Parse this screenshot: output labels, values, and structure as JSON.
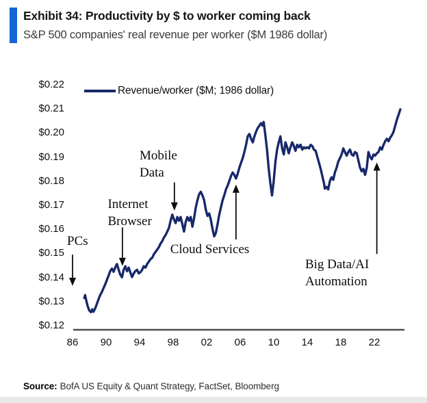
{
  "header": {
    "title": "Exhibit 34: Productivity by $ to worker coming back",
    "subtitle": "S&P 500 companies' real revenue per worker ($M 1986 dollar)"
  },
  "footer": {
    "source_label": "Source:",
    "source_text": "BofA US Equity & Quant Strategy, FactSet, Bloomberg"
  },
  "chart_data": {
    "type": "line",
    "title": "Exhibit 34: Productivity by $ to worker coming back",
    "subtitle": "S&P 500 companies' real revenue per worker ($M 1986 dollar)",
    "legend": "Revenue/worker ($M; 1986 dollar)",
    "legend_position": "top-left",
    "grid": false,
    "colors": {
      "line": "#17296b",
      "accent_bar": "#1565d6",
      "axis": "#4d4d4d",
      "annotation": "#0d0d0d"
    },
    "x_axis": {
      "range": [
        1985.2,
        2025.6
      ],
      "ticks": [
        {
          "label": "86",
          "year": 1986
        },
        {
          "label": "90",
          "year": 1990
        },
        {
          "label": "94",
          "year": 1994
        },
        {
          "label": "98",
          "year": 1998
        },
        {
          "label": "02",
          "year": 2002
        },
        {
          "label": "06",
          "year": 2006
        },
        {
          "label": "10",
          "year": 2010
        },
        {
          "label": "14",
          "year": 2014
        },
        {
          "label": "18",
          "year": 2018
        },
        {
          "label": "22",
          "year": 2022
        }
      ]
    },
    "y_axis": {
      "range": [
        0.118,
        0.225
      ],
      "unit": "$M (1986 dollar)",
      "ticks": [
        {
          "label": "$0.22",
          "value": 0.22
        },
        {
          "label": "$0.21",
          "value": 0.21
        },
        {
          "label": "$0.20",
          "value": 0.2
        },
        {
          "label": "$0.19",
          "value": 0.19
        },
        {
          "label": "$0.18",
          "value": 0.18
        },
        {
          "label": "$0.17",
          "value": 0.17
        },
        {
          "label": "$0.16",
          "value": 0.16
        },
        {
          "label": "$0.15",
          "value": 0.15
        },
        {
          "label": "$0.14",
          "value": 0.14
        },
        {
          "label": "$0.13",
          "value": 0.13
        },
        {
          "label": "$0.12",
          "value": 0.12
        }
      ]
    },
    "series": [
      {
        "name": "Revenue/worker ($M; 1986 dollar)",
        "points": [
          [
            1987.4,
            0.1315
          ],
          [
            1987.5,
            0.1327
          ],
          [
            1987.6,
            0.131
          ],
          [
            1987.8,
            0.1282
          ],
          [
            1988.0,
            0.1263
          ],
          [
            1988.2,
            0.1256
          ],
          [
            1988.35,
            0.1268
          ],
          [
            1988.5,
            0.1258
          ],
          [
            1988.7,
            0.1272
          ],
          [
            1988.9,
            0.129
          ],
          [
            1989.1,
            0.131
          ],
          [
            1989.3,
            0.1327
          ],
          [
            1989.5,
            0.134
          ],
          [
            1989.7,
            0.1356
          ],
          [
            1989.9,
            0.1372
          ],
          [
            1990.1,
            0.139
          ],
          [
            1990.3,
            0.1408
          ],
          [
            1990.5,
            0.1427
          ],
          [
            1990.7,
            0.1437
          ],
          [
            1990.9,
            0.1424
          ],
          [
            1991.1,
            0.1442
          ],
          [
            1991.3,
            0.1456
          ],
          [
            1991.5,
            0.1432
          ],
          [
            1991.7,
            0.1412
          ],
          [
            1991.9,
            0.1401
          ],
          [
            1992.1,
            0.1432
          ],
          [
            1992.3,
            0.1447
          ],
          [
            1992.5,
            0.1426
          ],
          [
            1992.7,
            0.1441
          ],
          [
            1992.9,
            0.1421
          ],
          [
            1993.1,
            0.1402
          ],
          [
            1993.3,
            0.1417
          ],
          [
            1993.5,
            0.1427
          ],
          [
            1993.7,
            0.1432
          ],
          [
            1993.9,
            0.1417
          ],
          [
            1994.1,
            0.1422
          ],
          [
            1994.3,
            0.1432
          ],
          [
            1994.5,
            0.1447
          ],
          [
            1994.7,
            0.1441
          ],
          [
            1994.9,
            0.1456
          ],
          [
            1995.1,
            0.1466
          ],
          [
            1995.3,
            0.1476
          ],
          [
            1995.5,
            0.1482
          ],
          [
            1995.7,
            0.1496
          ],
          [
            1995.9,
            0.1506
          ],
          [
            1996.1,
            0.1516
          ],
          [
            1996.3,
            0.1526
          ],
          [
            1996.5,
            0.1541
          ],
          [
            1996.7,
            0.1551
          ],
          [
            1996.9,
            0.1566
          ],
          [
            1997.1,
            0.1576
          ],
          [
            1997.3,
            0.1591
          ],
          [
            1997.5,
            0.1606
          ],
          [
            1997.7,
            0.1636
          ],
          [
            1997.9,
            0.1661
          ],
          [
            1998.1,
            0.1641
          ],
          [
            1998.3,
            0.1626
          ],
          [
            1998.5,
            0.1651
          ],
          [
            1998.7,
            0.1636
          ],
          [
            1998.9,
            0.1651
          ],
          [
            1999.1,
            0.1621
          ],
          [
            1999.3,
            0.1591
          ],
          [
            1999.5,
            0.1631
          ],
          [
            1999.7,
            0.1651
          ],
          [
            1999.9,
            0.1636
          ],
          [
            2000.1,
            0.1651
          ],
          [
            2000.3,
            0.1611
          ],
          [
            2000.5,
            0.1646
          ],
          [
            2000.7,
            0.1691
          ],
          [
            2000.9,
            0.1721
          ],
          [
            2001.1,
            0.1746
          ],
          [
            2001.3,
            0.1756
          ],
          [
            2001.5,
            0.1741
          ],
          [
            2001.7,
            0.1721
          ],
          [
            2001.9,
            0.1681
          ],
          [
            2002.1,
            0.1656
          ],
          [
            2002.3,
            0.1666
          ],
          [
            2002.5,
            0.1641
          ],
          [
            2002.7,
            0.1601
          ],
          [
            2002.9,
            0.1571
          ],
          [
            2003.1,
            0.1586
          ],
          [
            2003.3,
            0.1621
          ],
          [
            2003.5,
            0.1661
          ],
          [
            2003.7,
            0.1691
          ],
          [
            2003.9,
            0.1721
          ],
          [
            2004.1,
            0.1741
          ],
          [
            2004.3,
            0.1766
          ],
          [
            2004.5,
            0.1781
          ],
          [
            2004.7,
            0.1801
          ],
          [
            2004.9,
            0.1821
          ],
          [
            2005.1,
            0.1836
          ],
          [
            2005.3,
            0.1826
          ],
          [
            2005.5,
            0.1811
          ],
          [
            2005.7,
            0.1831
          ],
          [
            2005.9,
            0.1856
          ],
          [
            2006.1,
            0.1876
          ],
          [
            2006.3,
            0.1896
          ],
          [
            2006.5,
            0.1921
          ],
          [
            2006.7,
            0.1951
          ],
          [
            2006.9,
            0.1986
          ],
          [
            2007.1,
            0.1996
          ],
          [
            2007.3,
            0.1976
          ],
          [
            2007.5,
            0.1961
          ],
          [
            2007.7,
            0.1986
          ],
          [
            2007.9,
            0.2006
          ],
          [
            2008.1,
            0.2021
          ],
          [
            2008.3,
            0.2031
          ],
          [
            2008.5,
            0.2041
          ],
          [
            2008.65,
            0.2031
          ],
          [
            2008.8,
            0.2046
          ],
          [
            2009.0,
            0.1991
          ],
          [
            2009.2,
            0.1931
          ],
          [
            2009.4,
            0.1851
          ],
          [
            2009.6,
            0.1791
          ],
          [
            2009.8,
            0.1741
          ],
          [
            2010.0,
            0.1801
          ],
          [
            2010.2,
            0.1881
          ],
          [
            2010.4,
            0.1931
          ],
          [
            2010.6,
            0.1961
          ],
          [
            2010.8,
            0.1986
          ],
          [
            2011.0,
            0.1936
          ],
          [
            2011.2,
            0.1911
          ],
          [
            2011.4,
            0.1961
          ],
          [
            2011.6,
            0.1941
          ],
          [
            2011.8,
            0.1916
          ],
          [
            2012.0,
            0.1941
          ],
          [
            2012.2,
            0.1961
          ],
          [
            2012.4,
            0.1946
          ],
          [
            2012.6,
            0.1926
          ],
          [
            2012.8,
            0.1951
          ],
          [
            2013.0,
            0.1941
          ],
          [
            2013.2,
            0.1951
          ],
          [
            2013.4,
            0.1931
          ],
          [
            2013.6,
            0.1941
          ],
          [
            2013.8,
            0.1936
          ],
          [
            2014.0,
            0.1941
          ],
          [
            2014.2,
            0.1936
          ],
          [
            2014.4,
            0.1951
          ],
          [
            2014.6,
            0.1946
          ],
          [
            2014.8,
            0.1931
          ],
          [
            2015.0,
            0.1926
          ],
          [
            2015.2,
            0.1901
          ],
          [
            2015.4,
            0.1876
          ],
          [
            2015.6,
            0.1851
          ],
          [
            2015.8,
            0.1821
          ],
          [
            2016.0,
            0.1791
          ],
          [
            2016.1,
            0.1769
          ],
          [
            2016.3,
            0.1776
          ],
          [
            2016.5,
            0.1766
          ],
          [
            2016.7,
            0.1801
          ],
          [
            2016.9,
            0.1816
          ],
          [
            2017.1,
            0.1806
          ],
          [
            2017.3,
            0.1836
          ],
          [
            2017.5,
            0.1856
          ],
          [
            2017.7,
            0.1881
          ],
          [
            2017.9,
            0.1896
          ],
          [
            2018.1,
            0.1911
          ],
          [
            2018.3,
            0.1936
          ],
          [
            2018.5,
            0.1921
          ],
          [
            2018.7,
            0.1906
          ],
          [
            2018.9,
            0.1921
          ],
          [
            2019.1,
            0.1931
          ],
          [
            2019.3,
            0.1911
          ],
          [
            2019.5,
            0.1906
          ],
          [
            2019.7,
            0.1921
          ],
          [
            2019.9,
            0.1916
          ],
          [
            2020.1,
            0.1886
          ],
          [
            2020.3,
            0.1856
          ],
          [
            2020.5,
            0.1841
          ],
          [
            2020.7,
            0.1851
          ],
          [
            2020.9,
            0.1826
          ],
          [
            2021.1,
            0.1856
          ],
          [
            2021.3,
            0.1921
          ],
          [
            2021.5,
            0.1901
          ],
          [
            2021.7,
            0.1891
          ],
          [
            2021.9,
            0.1911
          ],
          [
            2022.1,
            0.1906
          ],
          [
            2022.3,
            0.1916
          ],
          [
            2022.5,
            0.1921
          ],
          [
            2022.7,
            0.1941
          ],
          [
            2022.9,
            0.1931
          ],
          [
            2023.1,
            0.1951
          ],
          [
            2023.3,
            0.1966
          ],
          [
            2023.5,
            0.1976
          ],
          [
            2023.7,
            0.1966
          ],
          [
            2023.9,
            0.1981
          ],
          [
            2024.1,
            0.1991
          ],
          [
            2024.3,
            0.2006
          ],
          [
            2024.5,
            0.2031
          ],
          [
            2024.7,
            0.2056
          ],
          [
            2024.9,
            0.2076
          ],
          [
            2025.1,
            0.2098
          ]
        ]
      }
    ],
    "annotations": [
      {
        "id": "pcs",
        "label_lines": [
          "PCs"
        ],
        "text_pos": {
          "year": 1985.35,
          "value": 0.1586
        },
        "arrow": {
          "year": 1986.0,
          "value_from": 0.1495,
          "value_to": 0.1365
        }
      },
      {
        "id": "internet-browser",
        "label_lines": [
          "Internet",
          "Browser"
        ],
        "text_pos": {
          "year": 1990.2,
          "value": 0.174
        },
        "arrow": {
          "year": 1991.95,
          "value_from": 0.1608,
          "value_to": 0.1448
        }
      },
      {
        "id": "mobile-data",
        "label_lines": [
          "Mobile",
          "Data"
        ],
        "text_pos": {
          "year": 1994.0,
          "value": 0.1942
        },
        "arrow": {
          "year": 1998.15,
          "value_from": 0.1795,
          "value_to": 0.1678
        }
      },
      {
        "id": "cloud-services",
        "label_lines": [
          "Cloud Services"
        ],
        "text_pos": {
          "year": 1997.65,
          "value": 0.1552
        },
        "arrow": {
          "year": 2005.5,
          "value_from": 0.1558,
          "value_to": 0.1786
        }
      },
      {
        "id": "big-data-ai-automation",
        "label_lines": [
          "Big Data/AI",
          "Automation"
        ],
        "text_pos": {
          "year": 2013.75,
          "value": 0.149
        },
        "arrow": {
          "year": 2022.3,
          "value_from": 0.1498,
          "value_to": 0.1878
        }
      }
    ]
  }
}
